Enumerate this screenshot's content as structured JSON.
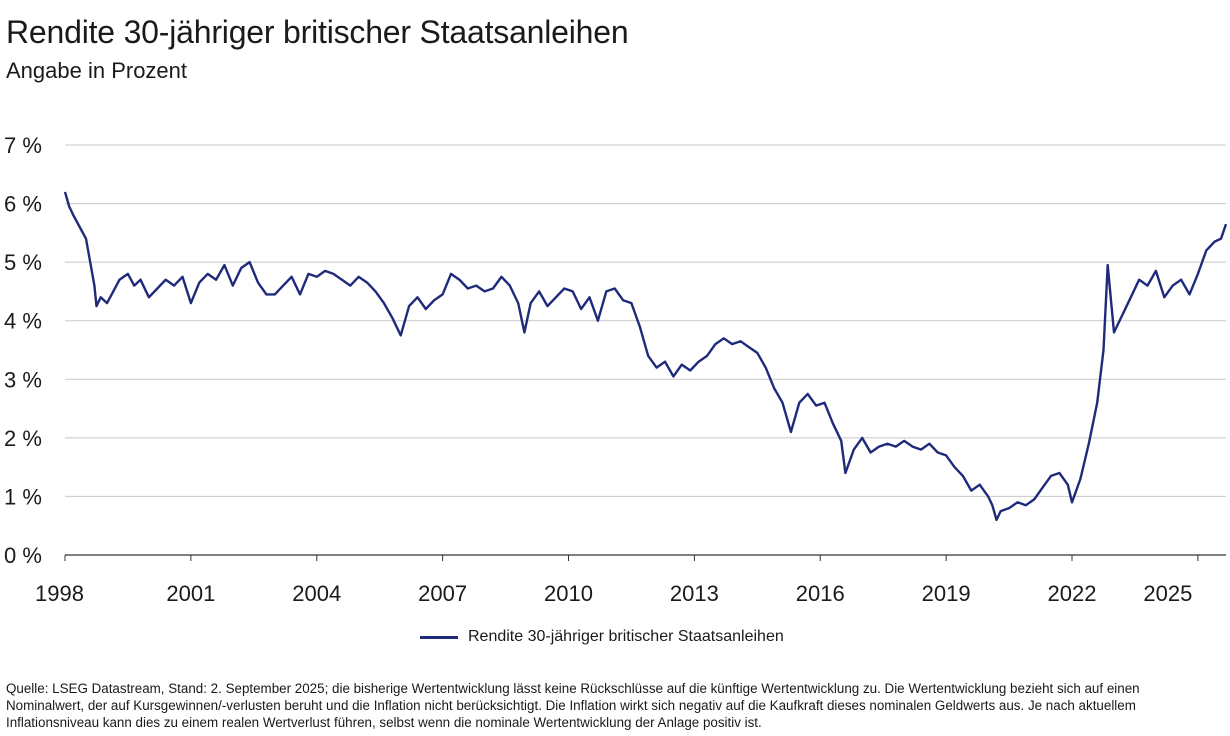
{
  "title": "Rendite 30-jähriger britischer Staatsanleihen",
  "subtitle": "Angabe in Prozent",
  "legend_label": "Rendite 30-jähriger britischer Staatsanleihen",
  "footnote": "Quelle: LSEG Datastream, Stand: 2. September 2025; die bisherige Wertentwicklung lässt keine Rückschlüsse auf die künftige Wertentwicklung zu. Die Wertentwicklung bezieht sich auf einen Nominalwert, der auf Kursgewinnen/-verlusten beruht und die Inflation nicht berücksichtigt. Die Inflation wirkt sich negativ auf die Kaufkraft dieses nominalen Geldwerts aus. Je nach aktuellem Inflationsniveau kann dies zu einem realen Wertverlust führen, selbst wenn die nominale Wertentwicklung der Anlage positiv ist.",
  "colors": {
    "series": "#1f2a7a",
    "grid": "#c8c8c8",
    "axis": "#333333",
    "text": "#1a1a1a"
  },
  "chart_data": {
    "type": "line",
    "title": "Rendite 30-jähriger britischer Staatsanleihen",
    "subtitle": "Angabe in Prozent",
    "xlabel": "",
    "ylabel": "",
    "xlim": [
      1998.0,
      2025.67
    ],
    "ylim": [
      0,
      7
    ],
    "x_ticks": [
      1998,
      2001,
      2004,
      2007,
      2010,
      2013,
      2016,
      2019,
      2022,
      2025
    ],
    "x_tick_labels": [
      "1998",
      "2001",
      "2004",
      "2007",
      "2010",
      "2013",
      "2016",
      "2019",
      "2022",
      "2025"
    ],
    "y_ticks": [
      0,
      1,
      2,
      3,
      4,
      5,
      6,
      7
    ],
    "y_tick_labels": [
      "0 %",
      "1 %",
      "2 %",
      "3 %",
      "4 %",
      "5 %",
      "6 %",
      "7 %"
    ],
    "grid": "horizontal",
    "legend_position": "bottom-center",
    "series": [
      {
        "name": "Rendite 30-jähriger britischer Staatsanleihen",
        "x": [
          1998.0,
          1998.1,
          1998.2,
          1998.35,
          1998.5,
          1998.6,
          1998.7,
          1998.75,
          1998.85,
          1999.0,
          1999.15,
          1999.3,
          1999.5,
          1999.65,
          1999.8,
          2000.0,
          2000.2,
          2000.4,
          2000.6,
          2000.8,
          2001.0,
          2001.2,
          2001.4,
          2001.6,
          2001.8,
          2002.0,
          2002.2,
          2002.4,
          2002.6,
          2002.8,
          2003.0,
          2003.2,
          2003.4,
          2003.6,
          2003.8,
          2004.0,
          2004.2,
          2004.4,
          2004.6,
          2004.8,
          2005.0,
          2005.2,
          2005.4,
          2005.6,
          2005.8,
          2006.0,
          2006.2,
          2006.4,
          2006.6,
          2006.8,
          2007.0,
          2007.2,
          2007.4,
          2007.6,
          2007.8,
          2008.0,
          2008.2,
          2008.4,
          2008.6,
          2008.8,
          2008.95,
          2009.1,
          2009.3,
          2009.5,
          2009.7,
          2009.9,
          2010.1,
          2010.3,
          2010.5,
          2010.7,
          2010.9,
          2011.1,
          2011.3,
          2011.5,
          2011.7,
          2011.9,
          2012.1,
          2012.3,
          2012.5,
          2012.7,
          2012.9,
          2013.1,
          2013.3,
          2013.5,
          2013.7,
          2013.9,
          2014.1,
          2014.3,
          2014.5,
          2014.7,
          2014.9,
          2015.1,
          2015.3,
          2015.5,
          2015.7,
          2015.9,
          2016.1,
          2016.3,
          2016.5,
          2016.6,
          2016.8,
          2017.0,
          2017.2,
          2017.4,
          2017.6,
          2017.8,
          2018.0,
          2018.2,
          2018.4,
          2018.6,
          2018.8,
          2019.0,
          2019.2,
          2019.4,
          2019.6,
          2019.8,
          2020.0,
          2020.1,
          2020.2,
          2020.3,
          2020.5,
          2020.7,
          2020.9,
          2021.1,
          2021.3,
          2021.5,
          2021.7,
          2021.9,
          2022.0,
          2022.2,
          2022.4,
          2022.6,
          2022.75,
          2022.85,
          2023.0,
          2023.2,
          2023.4,
          2023.6,
          2023.8,
          2024.0,
          2024.2,
          2024.4,
          2024.6,
          2024.8,
          2025.0,
          2025.2,
          2025.4,
          2025.55,
          2025.67
        ],
        "y": [
          6.2,
          5.95,
          5.8,
          5.6,
          5.4,
          5.0,
          4.6,
          4.25,
          4.4,
          4.3,
          4.5,
          4.7,
          4.8,
          4.6,
          4.7,
          4.4,
          4.55,
          4.7,
          4.6,
          4.75,
          4.3,
          4.65,
          4.8,
          4.7,
          4.95,
          4.6,
          4.9,
          5.0,
          4.65,
          4.45,
          4.45,
          4.6,
          4.75,
          4.45,
          4.8,
          4.75,
          4.85,
          4.8,
          4.7,
          4.6,
          4.75,
          4.65,
          4.5,
          4.3,
          4.05,
          3.75,
          4.25,
          4.4,
          4.2,
          4.35,
          4.45,
          4.8,
          4.7,
          4.55,
          4.6,
          4.5,
          4.55,
          4.75,
          4.6,
          4.3,
          3.8,
          4.3,
          4.5,
          4.25,
          4.4,
          4.55,
          4.5,
          4.2,
          4.4,
          4.0,
          4.5,
          4.55,
          4.35,
          4.3,
          3.9,
          3.4,
          3.2,
          3.3,
          3.05,
          3.25,
          3.15,
          3.3,
          3.4,
          3.6,
          3.7,
          3.6,
          3.65,
          3.55,
          3.45,
          3.2,
          2.85,
          2.6,
          2.1,
          2.6,
          2.75,
          2.55,
          2.6,
          2.25,
          1.95,
          1.4,
          1.8,
          2.0,
          1.75,
          1.85,
          1.9,
          1.85,
          1.95,
          1.85,
          1.8,
          1.9,
          1.75,
          1.7,
          1.5,
          1.35,
          1.1,
          1.2,
          1.0,
          0.85,
          0.6,
          0.75,
          0.8,
          0.9,
          0.85,
          0.95,
          1.15,
          1.35,
          1.4,
          1.2,
          0.9,
          1.3,
          1.9,
          2.6,
          3.5,
          4.95,
          3.8,
          4.1,
          4.4,
          4.7,
          4.6,
          4.85,
          4.4,
          4.6,
          4.7,
          4.45,
          4.8,
          5.2,
          5.35,
          5.4,
          5.65
        ]
      }
    ]
  }
}
